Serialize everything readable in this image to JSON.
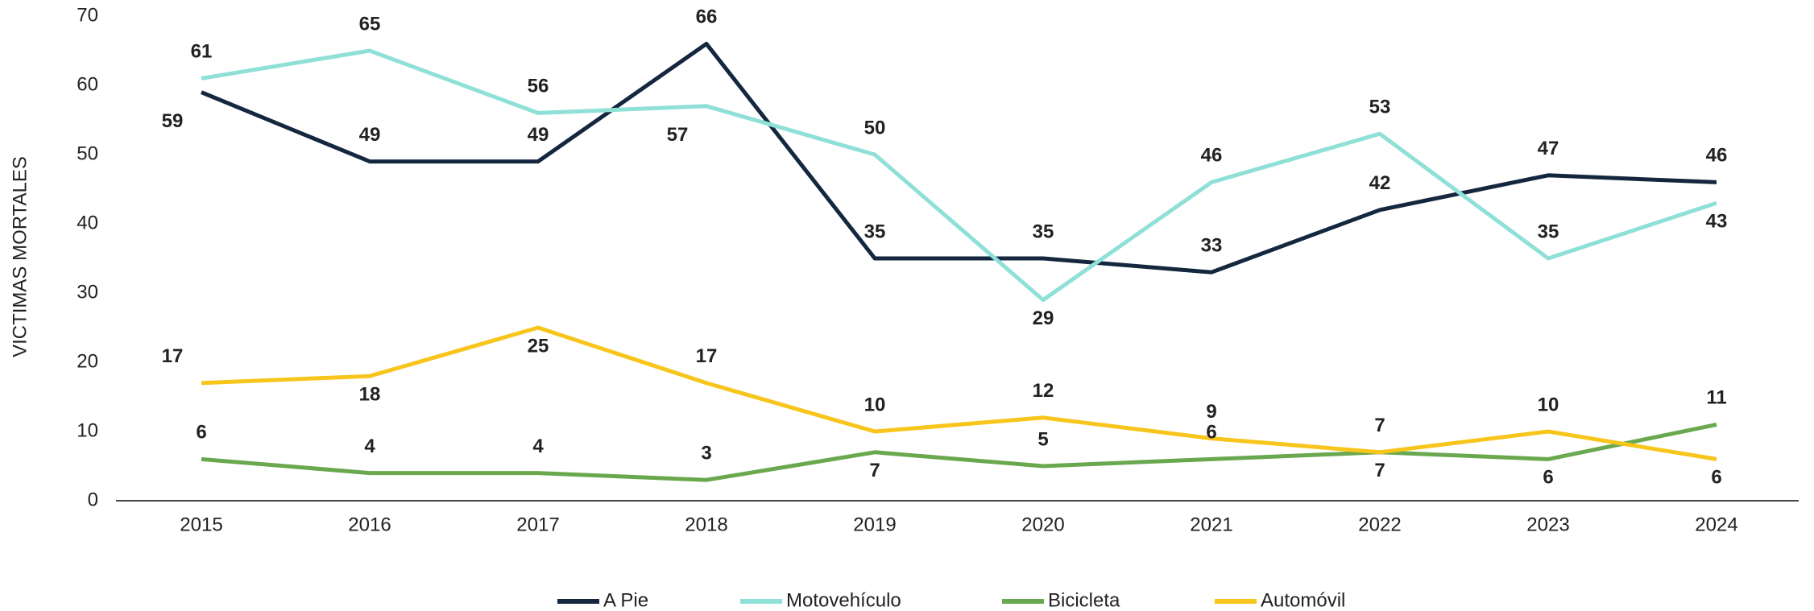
{
  "chart_data": {
    "type": "line",
    "y_axis_label": "VICTIMAS MORTALES",
    "categories": [
      "2015",
      "2016",
      "2017",
      "2018",
      "2019",
      "2020",
      "2021",
      "2022",
      "2023",
      "2024"
    ],
    "series": [
      {
        "name": "A Pie",
        "color": "#14273f",
        "values": [
          59,
          49,
          49,
          66,
          35,
          35,
          33,
          42,
          47,
          46
        ]
      },
      {
        "name": "Motovehículo",
        "color": "#8fe0d7",
        "values": [
          61,
          65,
          56,
          57,
          50,
          29,
          46,
          53,
          35,
          43
        ]
      },
      {
        "name": "Bicicleta",
        "color": "#6aa84f",
        "values": [
          6,
          4,
          4,
          3,
          7,
          5,
          6,
          7,
          6,
          11
        ]
      },
      {
        "name": "Automóvil",
        "color": "#f7c51c",
        "values": [
          17,
          18,
          25,
          17,
          10,
          12,
          9,
          7,
          10,
          6
        ]
      }
    ],
    "ylim": [
      0,
      70
    ],
    "yticks": [
      0,
      10,
      20,
      30,
      40,
      50,
      60,
      70
    ],
    "grid": false,
    "legend": "bottom"
  }
}
